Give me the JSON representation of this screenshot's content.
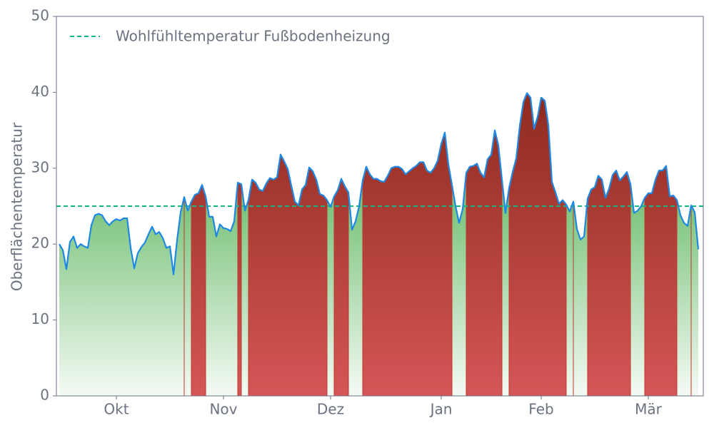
{
  "chart_data": {
    "type": "line",
    "ylabel": "Oberflächentemperatur",
    "categories": [
      null,
      null,
      null,
      null,
      null,
      null,
      null,
      null,
      null,
      null,
      null,
      null,
      null,
      null,
      null,
      null,
      "Okt",
      null,
      null,
      null,
      null,
      null,
      null,
      null,
      null,
      null,
      null,
      null,
      null,
      null,
      null,
      null,
      null,
      null,
      null,
      null,
      null,
      null,
      null,
      null,
      null,
      null,
      null,
      null,
      null,
      null,
      "Nov",
      null,
      null,
      null,
      null,
      null,
      null,
      null,
      null,
      null,
      null,
      null,
      null,
      null,
      null,
      null,
      null,
      null,
      null,
      null,
      null,
      null,
      null,
      null,
      null,
      null,
      null,
      null,
      null,
      null,
      "Dez",
      null,
      null,
      null,
      null,
      null,
      null,
      null,
      null,
      null,
      null,
      null,
      null,
      null,
      null,
      null,
      null,
      null,
      null,
      null,
      null,
      null,
      null,
      null,
      null,
      null,
      null,
      null,
      null,
      null,
      null,
      "Jan",
      null,
      null,
      null,
      null,
      null,
      null,
      null,
      null,
      null,
      null,
      null,
      null,
      null,
      null,
      null,
      null,
      null,
      null,
      null,
      null,
      null,
      null,
      null,
      null,
      null,
      null,
      null,
      "Feb",
      null,
      null,
      null,
      null,
      null,
      null,
      null,
      null,
      null,
      null,
      null,
      null,
      null,
      null,
      null,
      null,
      null,
      null,
      null,
      null,
      null,
      null,
      null,
      null,
      null,
      null,
      null,
      null,
      null,
      "Mär",
      null,
      null,
      null,
      null,
      null,
      null,
      null,
      null,
      null,
      null,
      null,
      null,
      null,
      null
    ],
    "series": [
      {
        "name": null,
        "color": "#1e88e5",
        "values": [
          20,
          19.2,
          16.7,
          20.3,
          21,
          19.5,
          20,
          19.7,
          19.5,
          22.5,
          23.8,
          24,
          23.8,
          23,
          22.5,
          23,
          23.3,
          23.1,
          23.4,
          23.4,
          19.5,
          16.8,
          18.8,
          19.6,
          20.2,
          21.3,
          22.3,
          21.3,
          21.6,
          20.8,
          19.5,
          19.7,
          16,
          20.5,
          24.2,
          26.2,
          24.4,
          25.6,
          26.5,
          26.7,
          27.8,
          26.3,
          23.6,
          23.6,
          21,
          22.6,
          22.1,
          22,
          21.7,
          23,
          28.1,
          27.9,
          24.4,
          25.8,
          28.5,
          28.1,
          27.2,
          27,
          28,
          28.7,
          28.5,
          28.8,
          31.8,
          30.9,
          29.9,
          27.7,
          25.6,
          25.1,
          27.2,
          27.8,
          30.1,
          29.6,
          28.5,
          26.6,
          26.4,
          25.8,
          24.9,
          26.3,
          27.1,
          28.6,
          27.6,
          26.8,
          21.9,
          23,
          25,
          28.4,
          30.2,
          29.2,
          28.6,
          28.6,
          28.3,
          28.2,
          29,
          30,
          30.2,
          30.2,
          29.9,
          29.2,
          29.6,
          30,
          30.3,
          30.8,
          30.8,
          29.7,
          29.4,
          30,
          31,
          33.2,
          34.7,
          30.5,
          27.8,
          25,
          22.8,
          24.6,
          29.4,
          30.2,
          30.3,
          30.6,
          29.4,
          28.8,
          31.2,
          31.8,
          35,
          33,
          28.5,
          24.1,
          27.4,
          29.5,
          31.3,
          35.6,
          38.7,
          39.9,
          39.3,
          35.2,
          36.8,
          39.3,
          38.9,
          35.7,
          28.2,
          26.8,
          25.3,
          25.8,
          25.2,
          24.3,
          25.6,
          22,
          20.6,
          21,
          26,
          27.2,
          27.5,
          29,
          28.5,
          26.1,
          27.3,
          29.1,
          29.7,
          28.4,
          28.9,
          29.5,
          27.9,
          24.1,
          24.4,
          25,
          26.1,
          26.7,
          26.7,
          28.5,
          29.7,
          29.7,
          30.3,
          26.3,
          26.4,
          25.8,
          23.8,
          22.8,
          22.4,
          25.1,
          24.2,
          19.3
        ]
      }
    ],
    "threshold": {
      "value": 25,
      "label": "Wohlfühltemperatur Fußbodenheizung",
      "color": "#10b981"
    },
    "above_color": "#c0392b",
    "ylim": [
      0,
      50
    ],
    "yticks": [
      0,
      10,
      20,
      30,
      40,
      50
    ],
    "legend": "upper left",
    "grid": false
  }
}
